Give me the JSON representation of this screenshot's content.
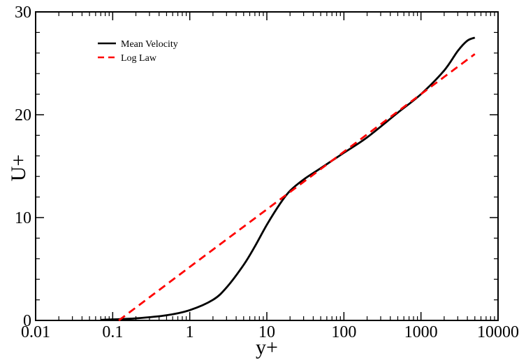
{
  "chart_data": {
    "type": "line",
    "title": "",
    "xlabel": "y+",
    "ylabel": "U+",
    "xscale": "log",
    "xlim": [
      0.01,
      10000
    ],
    "ylim": [
      0,
      30
    ],
    "x_tick_labels": [
      "0.01",
      "0.1",
      "1",
      "10",
      "100",
      "1000",
      "10000"
    ],
    "x_tick_values": [
      0.01,
      0.1,
      1,
      10,
      100,
      1000,
      10000
    ],
    "y_tick_labels": [
      "0",
      "10",
      "20",
      "30"
    ],
    "y_tick_values": [
      0,
      10,
      20,
      30
    ],
    "grid": false,
    "legend_position": "top-left",
    "series": [
      {
        "name": "Mean Velocity",
        "color": "#000000",
        "style": "solid",
        "x": [
          0.07,
          0.1,
          0.2,
          0.5,
          1,
          2,
          3,
          5,
          7,
          10,
          15,
          20,
          30,
          50,
          100,
          200,
          500,
          1000,
          2000,
          3000,
          4000,
          5000
        ],
        "y": [
          0.05,
          0.1,
          0.2,
          0.5,
          1.0,
          2.0,
          3.2,
          5.4,
          7.2,
          9.3,
          11.4,
          12.6,
          13.7,
          14.8,
          16.3,
          17.8,
          20.2,
          22.0,
          24.3,
          26.2,
          27.2,
          27.5
        ]
      },
      {
        "name": "Log Law",
        "color": "#ff0000",
        "style": "dashed",
        "x": [
          0.12,
          1,
          10,
          100,
          1000,
          5000
        ],
        "y": [
          0.0,
          5.2,
          10.8,
          16.4,
          22.0,
          25.9
        ]
      }
    ]
  }
}
